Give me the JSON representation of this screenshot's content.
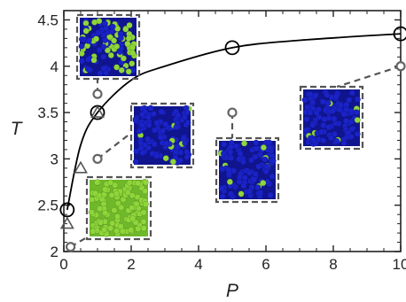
{
  "chart_data": {
    "type": "scatter",
    "xlabel": "P",
    "ylabel": "T",
    "xlim": [
      0,
      10
    ],
    "ylim": [
      2,
      4.6
    ],
    "xticks": [
      "0",
      "2",
      "4",
      "6",
      "8",
      "10"
    ],
    "yticks": [
      "2",
      "2.5",
      "3",
      "3.5",
      "4",
      "4.5"
    ],
    "grid": false,
    "series": [
      {
        "marker": "large-open-circle",
        "points": [
          [
            0.1,
            2.45
          ],
          [
            1.0,
            3.5
          ],
          [
            5.0,
            4.2
          ],
          [
            10.0,
            4.35
          ]
        ]
      },
      {
        "marker": "open-triangle",
        "points": [
          [
            0.1,
            2.3
          ],
          [
            0.5,
            2.9
          ],
          [
            1.0,
            3.5
          ]
        ]
      },
      {
        "marker": "small-gray-circle",
        "points": [
          [
            0.2,
            2.05
          ],
          [
            1.0,
            3.0
          ],
          [
            1.0,
            3.7
          ],
          [
            5.0,
            3.5
          ],
          [
            10.0,
            4.0
          ]
        ]
      }
    ],
    "fit_curve": {
      "type": "curve",
      "points": [
        [
          0.1,
          2.45
        ],
        [
          0.5,
          3.15
        ],
        [
          1.0,
          3.5
        ],
        [
          2.0,
          3.85
        ],
        [
          3.0,
          4.0
        ],
        [
          5.0,
          4.2
        ],
        [
          7.0,
          4.28
        ],
        [
          10.0,
          4.35
        ]
      ]
    },
    "snapshots": [
      {
        "label": "mixed blue-green",
        "anchor": [
          1.0,
          3.7
        ]
      },
      {
        "label": "mostly blue, few green",
        "anchor": [
          1.0,
          3.0
        ]
      },
      {
        "label": "all green",
        "anchor": [
          0.2,
          2.05
        ]
      },
      {
        "label": "blue with few green",
        "anchor": [
          5.0,
          3.5
        ]
      },
      {
        "label": "blue with few green",
        "anchor": [
          10.0,
          4.0
        ]
      }
    ],
    "colors": {
      "blue": "#1a22c8",
      "green": "#8fd63a",
      "axis": "#222222",
      "dashed": "#555555"
    }
  }
}
